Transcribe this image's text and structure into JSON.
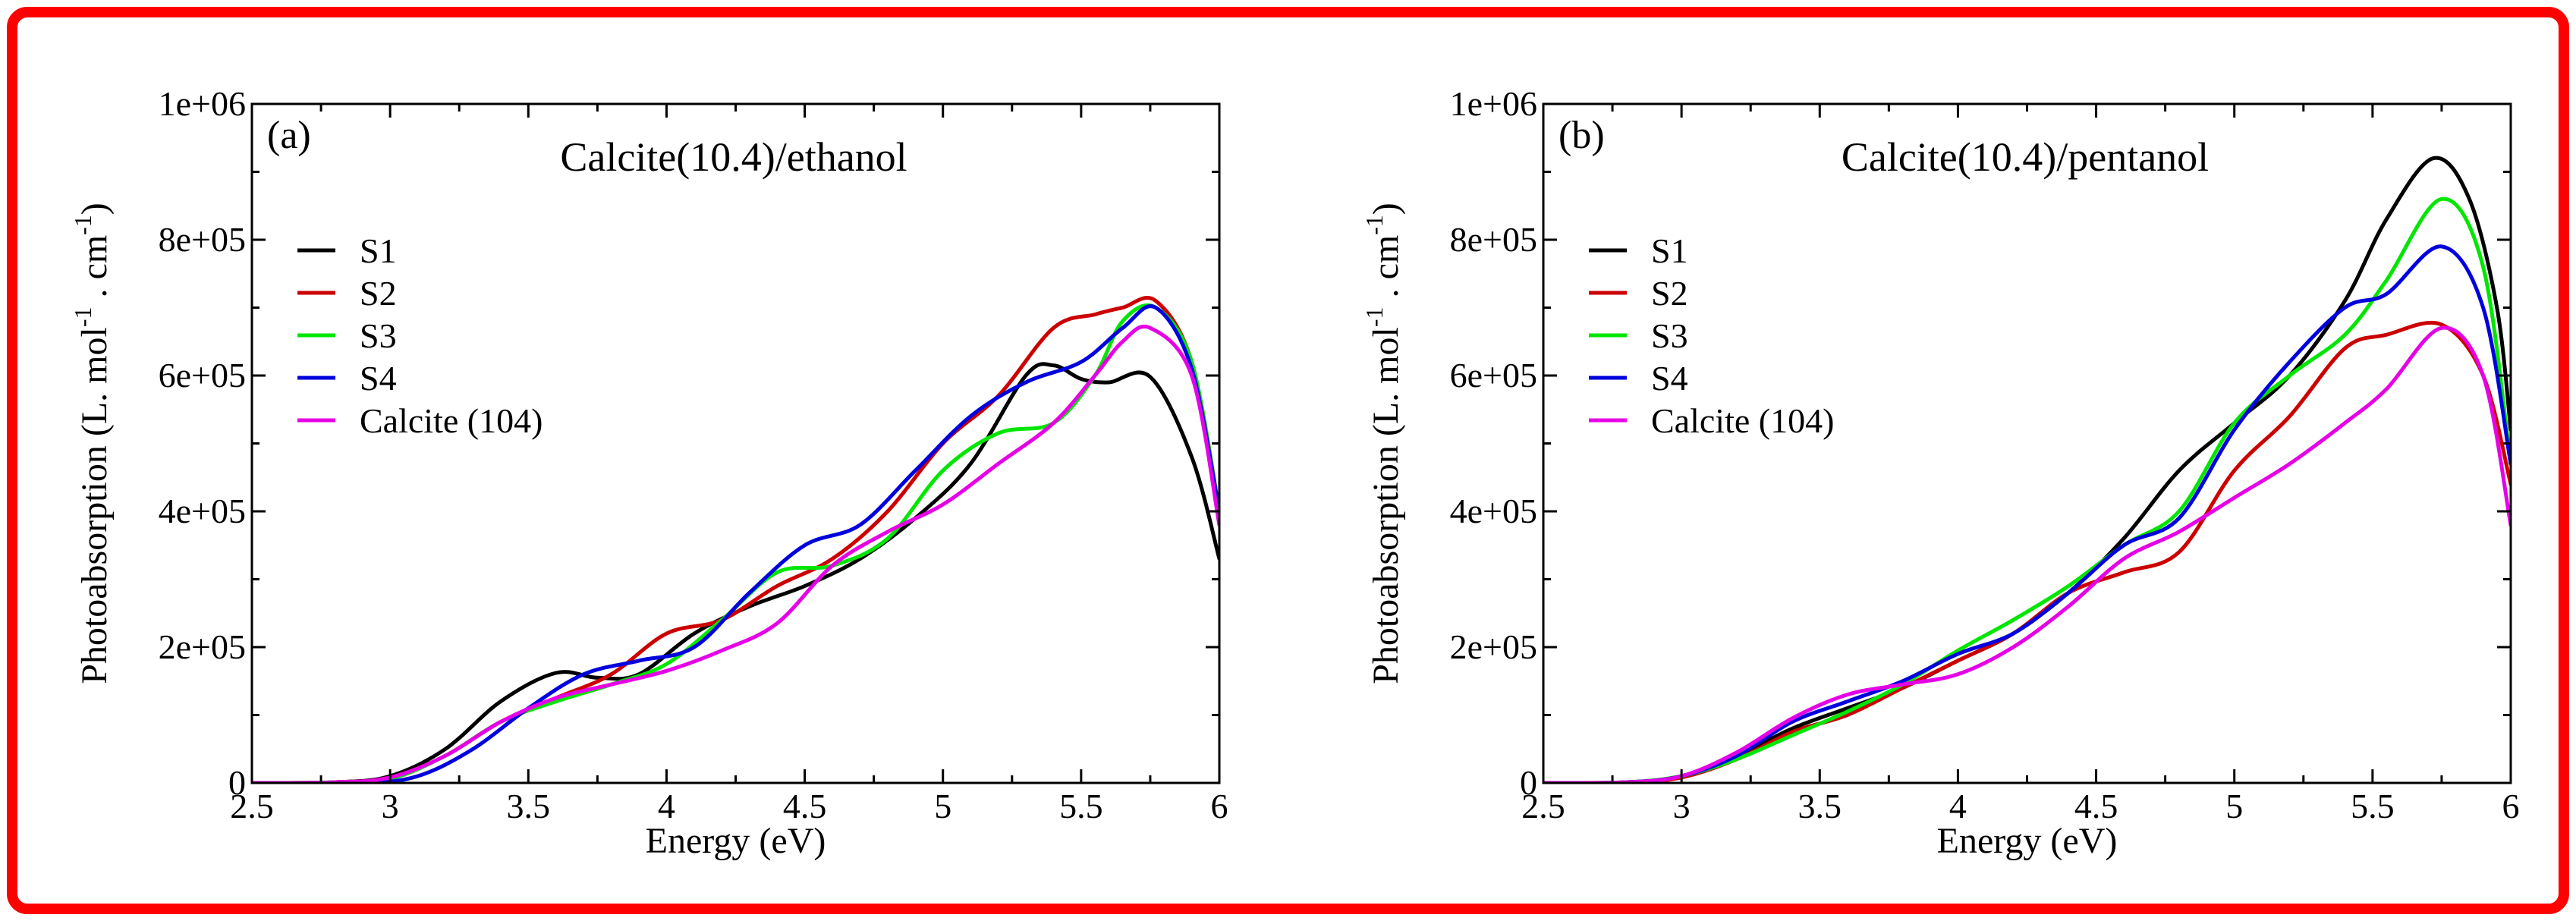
{
  "colors": {
    "frame": "#ff0000",
    "S1": "#000000",
    "S2": "#cc0000",
    "S3": "#00e600",
    "S4": "#0000dd",
    "Calcite (104)": "#e600e6"
  },
  "chart_data": [
    {
      "type": "line",
      "panel_tag": "(a)",
      "title": "Calcite(10.4)/ethanol",
      "xlabel": "Energy (eV)",
      "ylabel_main": "Photoabsorption (L. mol",
      "ylabel_sup1": "-1",
      "ylabel_mid": " . cm",
      "ylabel_sup2": "-1",
      "ylabel_end": ")",
      "xlim": [
        2.5,
        6
      ],
      "ylim": [
        0,
        1000000
      ],
      "xticks": [
        2.5,
        3,
        3.5,
        4,
        4.5,
        5,
        5.5,
        6
      ],
      "xtick_labels": [
        "2.5",
        "3",
        "3.5",
        "4",
        "4.5",
        "5",
        "5.5",
        "6"
      ],
      "yticks": [
        0,
        200000,
        400000,
        600000,
        800000,
        1000000
      ],
      "ytick_labels": [
        "0",
        "2e+05",
        "4e+05",
        "6e+05",
        "8e+05",
        "1e+06"
      ],
      "legend": [
        "S1",
        "S2",
        "S3",
        "S4",
        "Calcite (104)"
      ],
      "legend_position": "upper-left",
      "series": [
        {
          "name": "S1",
          "x": [
            2.5,
            2.8,
            3.0,
            3.2,
            3.4,
            3.6,
            3.75,
            3.9,
            4.1,
            4.3,
            4.5,
            4.7,
            4.9,
            5.1,
            5.3,
            5.4,
            5.5,
            5.6,
            5.75,
            5.9,
            6.0
          ],
          "values": [
            0,
            1000,
            10000,
            50000,
            120000,
            162000,
            155000,
            160000,
            220000,
            260000,
            290000,
            330000,
            390000,
            470000,
            600000,
            615000,
            595000,
            590000,
            598000,
            480000,
            330000
          ]
        },
        {
          "name": "S2",
          "x": [
            2.5,
            2.8,
            3.0,
            3.2,
            3.4,
            3.6,
            3.8,
            4.0,
            4.2,
            4.4,
            4.6,
            4.8,
            5.0,
            5.2,
            5.4,
            5.55,
            5.65,
            5.77,
            5.9,
            6.0
          ],
          "values": [
            0,
            1000,
            8000,
            40000,
            90000,
            125000,
            160000,
            220000,
            240000,
            290000,
            330000,
            400000,
            500000,
            570000,
            670000,
            690000,
            700000,
            710000,
            620000,
            400000
          ]
        },
        {
          "name": "S3",
          "x": [
            2.5,
            2.8,
            3.0,
            3.2,
            3.4,
            3.6,
            3.8,
            4.0,
            4.2,
            4.4,
            4.6,
            4.8,
            5.0,
            5.2,
            5.4,
            5.55,
            5.65,
            5.77,
            5.9,
            6.0
          ],
          "values": [
            0,
            1000,
            6000,
            40000,
            90000,
            120000,
            145000,
            175000,
            240000,
            310000,
            320000,
            360000,
            460000,
            515000,
            530000,
            600000,
            680000,
            700000,
            620000,
            400000
          ]
        },
        {
          "name": "S4",
          "x": [
            2.5,
            2.9,
            3.1,
            3.3,
            3.5,
            3.7,
            3.9,
            4.1,
            4.3,
            4.5,
            4.7,
            4.9,
            5.1,
            5.3,
            5.5,
            5.65,
            5.77,
            5.9,
            6.0
          ],
          "values": [
            0,
            0,
            10000,
            50000,
            110000,
            160000,
            180000,
            200000,
            280000,
            350000,
            380000,
            460000,
            540000,
            590000,
            620000,
            670000,
            700000,
            610000,
            400000
          ]
        },
        {
          "name": "Calcite (104)",
          "x": [
            2.5,
            2.8,
            3.0,
            3.2,
            3.4,
            3.6,
            3.8,
            4.0,
            4.2,
            4.4,
            4.6,
            4.8,
            5.0,
            5.2,
            5.4,
            5.55,
            5.65,
            5.75,
            5.9,
            6.0
          ],
          "values": [
            0,
            1000,
            8000,
            40000,
            90000,
            125000,
            145000,
            165000,
            195000,
            235000,
            320000,
            370000,
            410000,
            470000,
            530000,
            600000,
            650000,
            670000,
            600000,
            380000
          ]
        }
      ]
    },
    {
      "type": "line",
      "panel_tag": "(b)",
      "title": "Calcite(10.4)/pentanol",
      "xlabel": "Energy (eV)",
      "ylabel_main": "Photoabsorption (L. mol",
      "ylabel_sup1": "-1",
      "ylabel_mid": " . cm",
      "ylabel_sup2": "-1",
      "ylabel_end": ")",
      "xlim": [
        2.5,
        6
      ],
      "ylim": [
        0,
        1000000
      ],
      "xticks": [
        2.5,
        3,
        3.5,
        4,
        4.5,
        5,
        5.5,
        6
      ],
      "xtick_labels": [
        "2.5",
        "3",
        "3.5",
        "4",
        "4.5",
        "5",
        "5.5",
        "6"
      ],
      "yticks": [
        0,
        200000,
        400000,
        600000,
        800000,
        1000000
      ],
      "ytick_labels": [
        "0",
        "2e+05",
        "4e+05",
        "6e+05",
        "8e+05",
        "1e+06"
      ],
      "legend": [
        "S1",
        "S2",
        "S3",
        "S4",
        "Calcite (104)"
      ],
      "legend_position": "upper-left",
      "series": [
        {
          "name": "S1",
          "x": [
            2.5,
            2.8,
            3.0,
            3.2,
            3.4,
            3.6,
            3.8,
            4.0,
            4.2,
            4.4,
            4.6,
            4.8,
            5.0,
            5.2,
            5.4,
            5.55,
            5.72,
            5.85,
            5.95,
            6.0
          ],
          "values": [
            0,
            1000,
            10000,
            40000,
            80000,
            110000,
            140000,
            180000,
            220000,
            280000,
            360000,
            460000,
            530000,
            600000,
            710000,
            830000,
            920000,
            860000,
            700000,
            520000
          ]
        },
        {
          "name": "S2",
          "x": [
            2.5,
            2.8,
            3.0,
            3.2,
            3.4,
            3.6,
            3.8,
            4.0,
            4.2,
            4.4,
            4.6,
            4.8,
            5.0,
            5.2,
            5.4,
            5.55,
            5.75,
            5.9,
            6.0
          ],
          "values": [
            0,
            1000,
            8000,
            35000,
            75000,
            100000,
            140000,
            180000,
            220000,
            280000,
            310000,
            340000,
            460000,
            540000,
            640000,
            660000,
            675000,
            600000,
            440000
          ]
        },
        {
          "name": "S3",
          "x": [
            2.5,
            2.8,
            3.0,
            3.2,
            3.4,
            3.6,
            3.8,
            4.0,
            4.2,
            4.4,
            4.6,
            4.8,
            5.0,
            5.2,
            5.4,
            5.55,
            5.75,
            5.9,
            6.0
          ],
          "values": [
            0,
            1000,
            10000,
            35000,
            70000,
            105000,
            145000,
            195000,
            240000,
            290000,
            350000,
            400000,
            530000,
            600000,
            660000,
            740000,
            860000,
            760000,
            470000
          ]
        },
        {
          "name": "S4",
          "x": [
            2.5,
            2.8,
            3.0,
            3.2,
            3.4,
            3.6,
            3.8,
            4.0,
            4.2,
            4.4,
            4.6,
            4.8,
            5.0,
            5.2,
            5.4,
            5.55,
            5.75,
            5.9,
            6.0
          ],
          "values": [
            0,
            1000,
            10000,
            40000,
            90000,
            120000,
            150000,
            190000,
            220000,
            280000,
            350000,
            390000,
            520000,
            620000,
            700000,
            720000,
            790000,
            700000,
            470000
          ]
        },
        {
          "name": "Calcite (104)",
          "x": [
            2.5,
            2.8,
            3.0,
            3.2,
            3.4,
            3.6,
            3.8,
            4.0,
            4.2,
            4.4,
            4.6,
            4.8,
            5.0,
            5.2,
            5.4,
            5.55,
            5.75,
            5.9,
            6.0
          ],
          "values": [
            0,
            1000,
            10000,
            45000,
            95000,
            130000,
            145000,
            160000,
            200000,
            260000,
            330000,
            370000,
            420000,
            470000,
            530000,
            580000,
            670000,
            600000,
            380000
          ]
        }
      ]
    }
  ]
}
